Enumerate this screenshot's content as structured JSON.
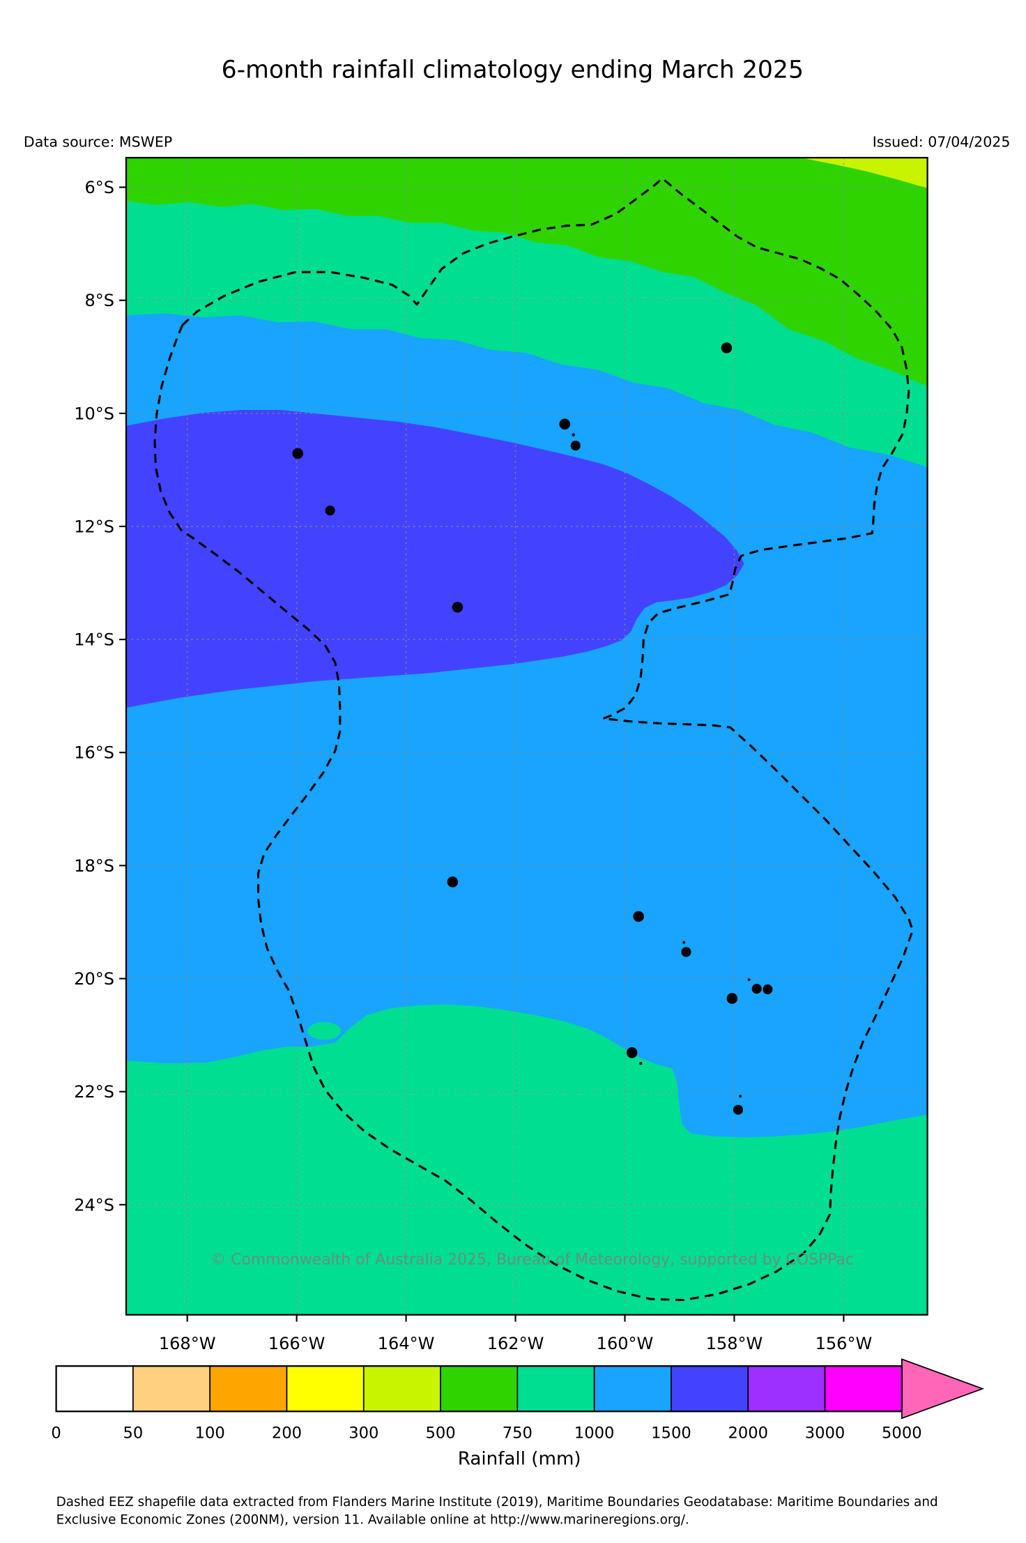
{
  "title": "6-month rainfall climatology ending March 2025",
  "header": {
    "data_source": "Data source: MSWEP",
    "issued": "Issued: 07/04/2025"
  },
  "map": {
    "lat_tick_labels": [
      "6°S",
      "8°S",
      "10°S",
      "12°S",
      "14°S",
      "16°S",
      "18°S",
      "20°S",
      "22°S",
      "24°S"
    ],
    "lon_tick_labels": [
      "168°W",
      "166°W",
      "164°W",
      "162°W",
      "160°W",
      "158°W",
      "156°W"
    ],
    "watermark": "© Commonwealth of Australia 2025, Bureau of Meteorology, supported by COSPPac"
  },
  "colorbar": {
    "tick_labels": [
      "0",
      "50",
      "100",
      "200",
      "300",
      "500",
      "750",
      "1000",
      "1500",
      "2000",
      "3000",
      "5000"
    ],
    "label": "Rainfall (mm)"
  },
  "footer": {
    "line1": "Dashed EEZ shapefile data extracted from Flanders Marine Institute (2019), Maritime Boundaries Geodatabase: Maritime Boundaries and",
    "line2": "Exclusive Economic Zones (200NM), version 11. Available online at http://www.marineregions.org/."
  },
  "chart_data": {
    "type": "filled-contour-map",
    "lon_range_deg_w": [
      169.1,
      154.5
    ],
    "lat_range_deg_s": [
      5.5,
      25.9
    ],
    "grid": {
      "lat_ticks_s": [
        6,
        8,
        10,
        12,
        14,
        16,
        18,
        20,
        22,
        24
      ],
      "lon_ticks_w": [
        168,
        166,
        164,
        162,
        160,
        158,
        156
      ]
    },
    "legend_bins_mm": [
      0,
      50,
      100,
      200,
      300,
      500,
      750,
      1000,
      1500,
      2000,
      3000,
      5000
    ],
    "legend_colors": [
      "#ffffff",
      "#ffd080",
      "#ffa500",
      "#ffff00",
      "#c8f400",
      "#2fd400",
      "#00de91",
      "#18a4ff",
      "#4343ff",
      "#9d2fff",
      "#ff00ff"
    ],
    "overflow_arrow_color": "#ff66b8",
    "rainfall_zones": [
      {
        "range_mm": "300-500",
        "where": "thin sliver in far north-east corner"
      },
      {
        "range_mm": "500-750",
        "where": "northern band along ~6-8°S, widening toward the east"
      },
      {
        "range_mm": "750-1000",
        "where": "band near ~7-8.5°S and the broad region south of ~21°S"
      },
      {
        "range_mm": "1000-1500",
        "where": "most of the central map area"
      },
      {
        "range_mm": "1500-2000",
        "where": "large lobe from west edge across ~8.5-15°S reaching ~158°W"
      }
    ],
    "island_markers": [
      {
        "lat_s": 8.84,
        "lon_w": 158.14,
        "r": 5.5
      },
      {
        "lat_s": 10.19,
        "lon_w": 161.1,
        "r": 5.5
      },
      {
        "lat_s": 10.38,
        "lon_w": 160.94,
        "r": 1.6
      },
      {
        "lat_s": 10.57,
        "lon_w": 160.9,
        "r": 5.0
      },
      {
        "lat_s": 10.71,
        "lon_w": 165.98,
        "r": 5.5
      },
      {
        "lat_s": 11.72,
        "lon_w": 165.39,
        "r": 5.0
      },
      {
        "lat_s": 13.43,
        "lon_w": 163.06,
        "r": 5.5
      },
      {
        "lat_s": 18.29,
        "lon_w": 163.15,
        "r": 5.5
      },
      {
        "lat_s": 18.9,
        "lon_w": 159.75,
        "r": 5.5
      },
      {
        "lat_s": 19.36,
        "lon_w": 158.92,
        "r": 1.4
      },
      {
        "lat_s": 19.53,
        "lon_w": 158.88,
        "r": 5.0
      },
      {
        "lat_s": 20.02,
        "lon_w": 157.73,
        "r": 1.4
      },
      {
        "lat_s": 20.18,
        "lon_w": 157.59,
        "r": 5.0
      },
      {
        "lat_s": 20.19,
        "lon_w": 157.39,
        "r": 5.0
      },
      {
        "lat_s": 20.35,
        "lon_w": 158.04,
        "r": 5.5
      },
      {
        "lat_s": 21.31,
        "lon_w": 159.87,
        "r": 5.5
      },
      {
        "lat_s": 21.5,
        "lon_w": 159.71,
        "r": 1.5
      },
      {
        "lat_s": 22.08,
        "lon_w": 157.89,
        "r": 1.4
      },
      {
        "lat_s": 22.32,
        "lon_w": 157.93,
        "r": 5.0
      }
    ]
  }
}
